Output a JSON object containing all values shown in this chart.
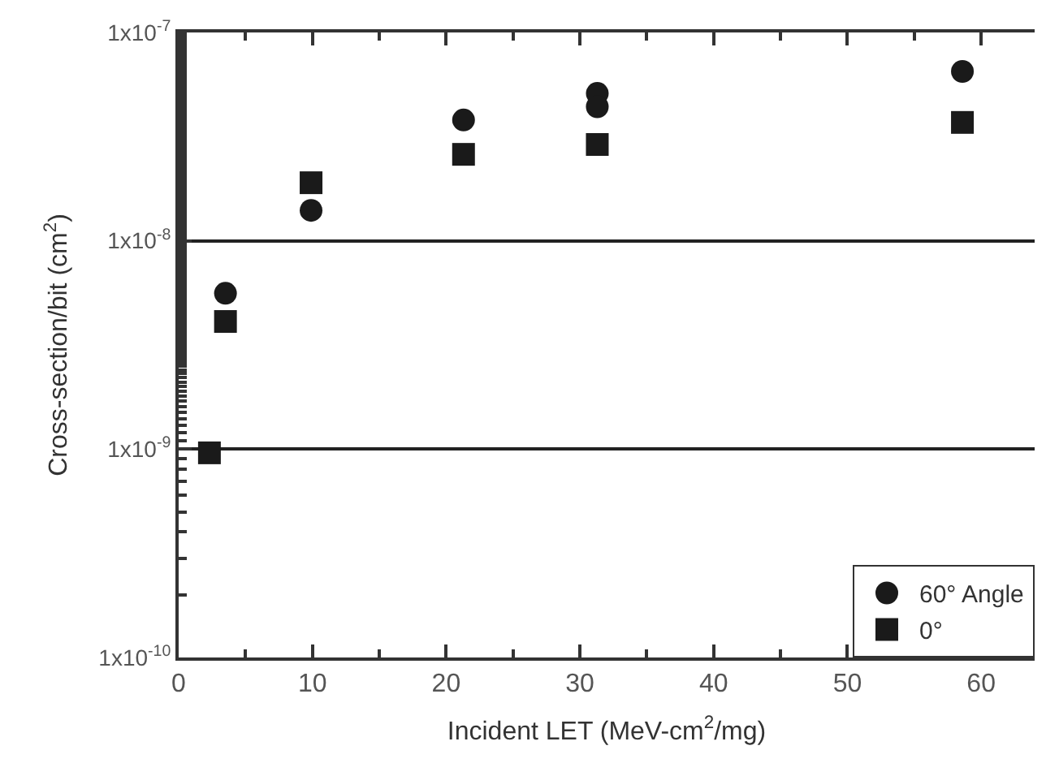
{
  "chart_data": {
    "type": "scatter",
    "xlabel": "Incident LET (MeV-cm$^{2}$/mg)",
    "ylabel": "Cross-section/bit (cm$^{2}$)",
    "series": [
      {
        "name": "60° Angle",
        "color": "#1a1a1a",
        "marker": "circle",
        "x": [
          3.5,
          9.9,
          21.3,
          31.3,
          31.3,
          58.6
        ],
        "values": [
          5.6e-09,
          1.4e-08,
          3.8e-08,
          5.1e-08,
          4.4e-08,
          6.5e-08
        ]
      },
      {
        "name": "0°",
        "color": "#1a1a1a",
        "marker": "square",
        "x": [
          2.3,
          3.5,
          9.9,
          21.3,
          31.3,
          58.6
        ],
        "values": [
          9.6e-10,
          4.1e-09,
          1.9e-08,
          2.6e-08,
          2.9e-08,
          3.7e-08
        ]
      }
    ],
    "log": "y",
    "xlim": [
      0,
      64
    ],
    "xticks": [
      0,
      10,
      20,
      30,
      40,
      50,
      60
    ],
    "ylim": [
      1e-10,
      1e-07
    ],
    "yticks": [
      {
        "value": 1e-10,
        "label": "1x10$^{-10}$"
      },
      {
        "value": 1e-09,
        "label": "1x10$^{-9}$"
      },
      {
        "value": 1e-08,
        "label": "1x10$^{-8}$"
      },
      {
        "value": 1e-07,
        "label": "1x10$^{-7}$"
      }
    ],
    "grid": "y",
    "legend": "bottom right"
  }
}
